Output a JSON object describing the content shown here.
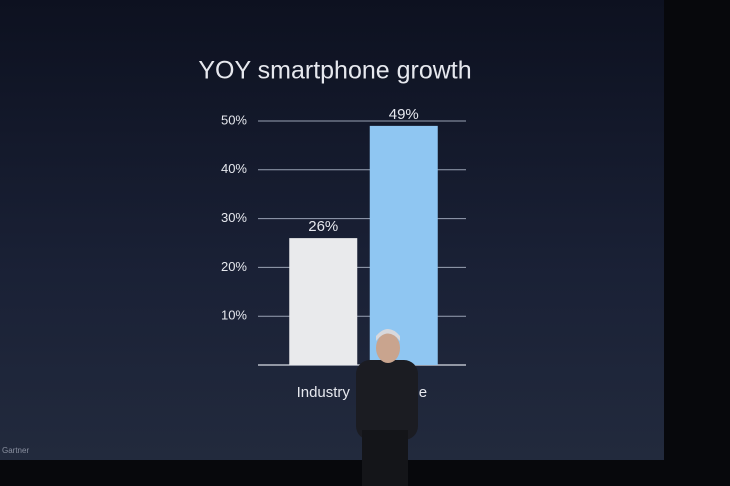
{
  "chart_data": {
    "type": "bar",
    "title": "YOY smartphone growth",
    "categories": [
      "Industry",
      "iPhone"
    ],
    "values": [
      26,
      49
    ],
    "value_labels": [
      "26%",
      "49%"
    ],
    "colors": [
      "#e9eaec",
      "#8fc6f2"
    ],
    "ylim": [
      0,
      50
    ],
    "yticks": [
      {
        "value": 10,
        "label": "10%"
      },
      {
        "value": 20,
        "label": "20%"
      },
      {
        "value": 30,
        "label": "30%"
      },
      {
        "value": 40,
        "label": "40%"
      },
      {
        "value": 50,
        "label": "50%"
      }
    ],
    "grid": true,
    "source": "Gartner"
  }
}
